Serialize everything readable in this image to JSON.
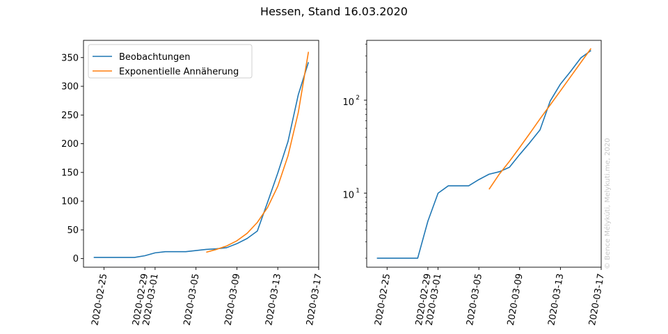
{
  "figure": {
    "title": "Hessen, Stand 16.03.2020",
    "watermark": "© Bence Mélykúti, Melykuti.me, 2020"
  },
  "chart_data": [
    {
      "type": "line",
      "yscale": "linear",
      "xlim": [
        "2020-02-23",
        "2020-03-17"
      ],
      "ylim": [
        -15,
        380
      ],
      "x_ticks": [
        "2020-02-25",
        "2020-02-29",
        "2020-03-01",
        "2020-03-05",
        "2020-03-09",
        "2020-03-13",
        "2020-03-17"
      ],
      "y_ticks": [
        0,
        50,
        100,
        150,
        200,
        250,
        300,
        350
      ],
      "legend": {
        "position": "top-left"
      },
      "series": [
        {
          "name": "Beobachtungen",
          "color": "#1f77b4",
          "x": [
            "2020-02-24",
            "2020-02-25",
            "2020-02-26",
            "2020-02-27",
            "2020-02-28",
            "2020-02-29",
            "2020-03-01",
            "2020-03-02",
            "2020-03-03",
            "2020-03-04",
            "2020-03-05",
            "2020-03-06",
            "2020-03-07",
            "2020-03-08",
            "2020-03-09",
            "2020-03-10",
            "2020-03-11",
            "2020-03-12",
            "2020-03-13",
            "2020-03-14",
            "2020-03-15",
            "2020-03-16"
          ],
          "y": [
            2,
            2,
            2,
            2,
            2,
            5,
            10,
            12,
            12,
            12,
            14,
            16,
            17,
            19,
            26,
            35,
            48,
            98,
            149,
            204,
            285,
            342
          ]
        },
        {
          "name": "Exponentielle Annäherung",
          "color": "#ff7f0e",
          "x": [
            "2020-03-06",
            "2020-03-07",
            "2020-03-08",
            "2020-03-09",
            "2020-03-10",
            "2020-03-11",
            "2020-03-12",
            "2020-03-13",
            "2020-03-14",
            "2020-03-15",
            "2020-03-16"
          ],
          "y": [
            11,
            16,
            22,
            31,
            44,
            63,
            89,
            126,
            179,
            254,
            360
          ]
        }
      ]
    },
    {
      "type": "line",
      "yscale": "log",
      "xlim": [
        "2020-02-23",
        "2020-03-17"
      ],
      "ylim": [
        1.6,
        440
      ],
      "x_ticks": [
        "2020-02-25",
        "2020-02-29",
        "2020-03-01",
        "2020-03-05",
        "2020-03-09",
        "2020-03-13",
        "2020-03-17"
      ],
      "y_ticks": [
        10,
        100
      ],
      "y_tick_labels": [
        [
          "10",
          "1"
        ],
        [
          "10",
          "2"
        ]
      ],
      "series": [
        {
          "color": "#1f77b4",
          "x": [
            "2020-02-24",
            "2020-02-25",
            "2020-02-26",
            "2020-02-27",
            "2020-02-28",
            "2020-02-29",
            "2020-03-01",
            "2020-03-02",
            "2020-03-03",
            "2020-03-04",
            "2020-03-05",
            "2020-03-06",
            "2020-03-07",
            "2020-03-08",
            "2020-03-09",
            "2020-03-10",
            "2020-03-11",
            "2020-03-12",
            "2020-03-13",
            "2020-03-14",
            "2020-03-15",
            "2020-03-16"
          ],
          "y": [
            2,
            2,
            2,
            2,
            2,
            5,
            10,
            12,
            12,
            12,
            14,
            16,
            17,
            19,
            26,
            35,
            48,
            98,
            149,
            204,
            285,
            342
          ]
        },
        {
          "color": "#ff7f0e",
          "x": [
            "2020-03-06",
            "2020-03-07",
            "2020-03-08",
            "2020-03-09",
            "2020-03-10",
            "2020-03-11",
            "2020-03-12",
            "2020-03-13",
            "2020-03-14",
            "2020-03-15",
            "2020-03-16"
          ],
          "y": [
            11,
            16,
            22,
            31,
            44,
            63,
            89,
            126,
            179,
            254,
            360
          ]
        }
      ]
    }
  ]
}
